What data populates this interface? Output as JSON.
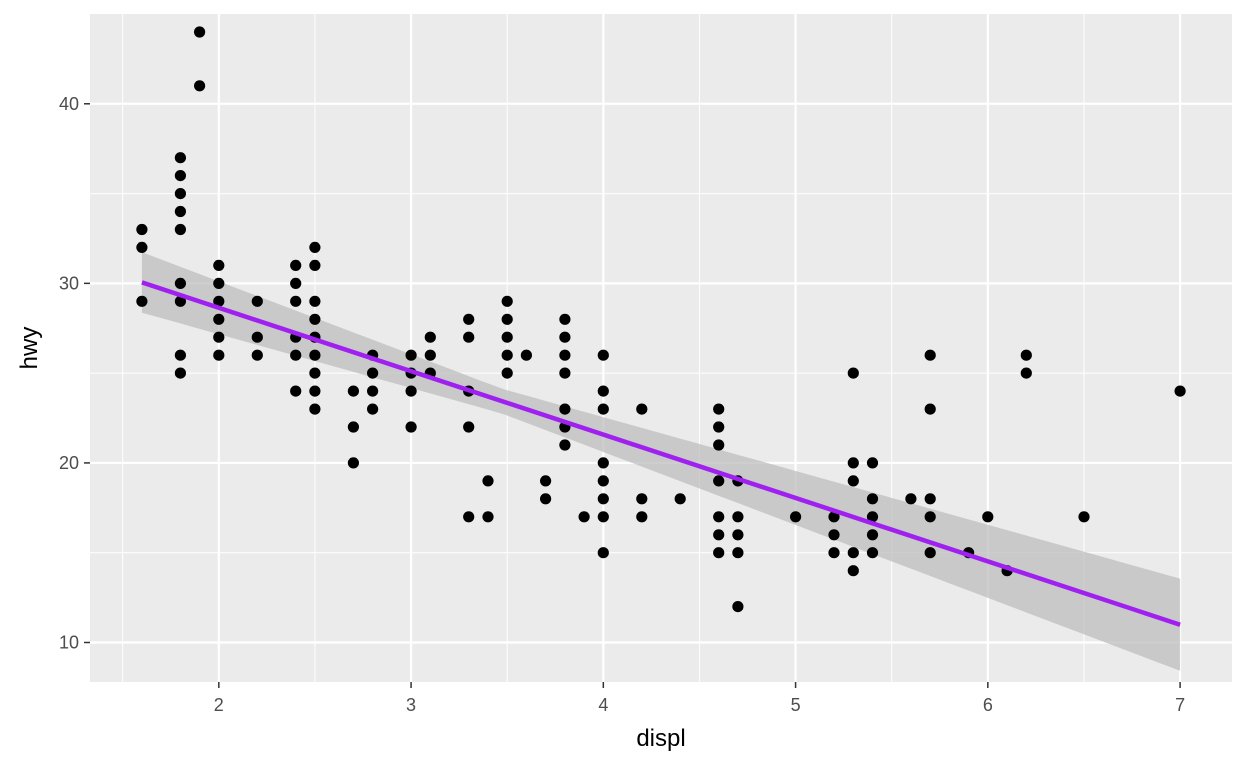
{
  "chart_data": {
    "type": "scatter",
    "title": "",
    "xlabel": "displ",
    "ylabel": "hwy",
    "xlim": [
      1.33,
      7.27
    ],
    "ylim": [
      7.8,
      45.0
    ],
    "x_ticks": [
      2,
      3,
      4,
      5,
      6,
      7
    ],
    "x_tick_labels": [
      "2",
      "3",
      "4",
      "5",
      "6",
      "7"
    ],
    "y_ticks": [
      10,
      20,
      30,
      40
    ],
    "y_tick_labels": [
      "10",
      "20",
      "30",
      "40"
    ],
    "grid": true,
    "legend": "none",
    "points": [
      [
        1.6,
        33
      ],
      [
        1.6,
        32
      ],
      [
        1.6,
        29
      ],
      [
        1.8,
        37
      ],
      [
        1.8,
        36
      ],
      [
        1.8,
        35
      ],
      [
        1.8,
        34
      ],
      [
        1.8,
        33
      ],
      [
        1.8,
        30
      ],
      [
        1.8,
        29
      ],
      [
        1.8,
        26
      ],
      [
        1.8,
        25
      ],
      [
        1.9,
        44
      ],
      [
        1.9,
        41
      ],
      [
        2.0,
        31
      ],
      [
        2.0,
        30
      ],
      [
        2.0,
        29
      ],
      [
        2.0,
        28
      ],
      [
        2.0,
        27
      ],
      [
        2.0,
        26
      ],
      [
        2.2,
        29
      ],
      [
        2.2,
        27
      ],
      [
        2.2,
        26
      ],
      [
        2.4,
        31
      ],
      [
        2.4,
        30
      ],
      [
        2.4,
        29
      ],
      [
        2.4,
        27
      ],
      [
        2.4,
        26
      ],
      [
        2.4,
        24
      ],
      [
        2.5,
        32
      ],
      [
        2.5,
        31
      ],
      [
        2.5,
        29
      ],
      [
        2.5,
        28
      ],
      [
        2.5,
        27
      ],
      [
        2.5,
        26
      ],
      [
        2.5,
        25
      ],
      [
        2.5,
        24
      ],
      [
        2.5,
        23
      ],
      [
        2.7,
        24
      ],
      [
        2.7,
        22
      ],
      [
        2.7,
        20
      ],
      [
        2.8,
        26
      ],
      [
        2.8,
        25
      ],
      [
        2.8,
        24
      ],
      [
        2.8,
        23
      ],
      [
        3.0,
        26
      ],
      [
        3.0,
        25
      ],
      [
        3.0,
        24
      ],
      [
        3.0,
        22
      ],
      [
        3.1,
        27
      ],
      [
        3.1,
        26
      ],
      [
        3.1,
        25
      ],
      [
        3.3,
        28
      ],
      [
        3.3,
        27
      ],
      [
        3.3,
        24
      ],
      [
        3.3,
        22
      ],
      [
        3.3,
        17
      ],
      [
        3.4,
        19
      ],
      [
        3.4,
        17
      ],
      [
        3.5,
        29
      ],
      [
        3.5,
        28
      ],
      [
        3.5,
        27
      ],
      [
        3.5,
        26
      ],
      [
        3.5,
        25
      ],
      [
        3.6,
        26
      ],
      [
        3.7,
        19
      ],
      [
        3.7,
        18
      ],
      [
        3.8,
        28
      ],
      [
        3.8,
        27
      ],
      [
        3.8,
        26
      ],
      [
        3.8,
        25
      ],
      [
        3.8,
        23
      ],
      [
        3.8,
        22
      ],
      [
        3.8,
        21
      ],
      [
        3.9,
        17
      ],
      [
        4.0,
        26
      ],
      [
        4.0,
        24
      ],
      [
        4.0,
        23
      ],
      [
        4.0,
        20
      ],
      [
        4.0,
        19
      ],
      [
        4.0,
        18
      ],
      [
        4.0,
        17
      ],
      [
        4.0,
        15
      ],
      [
        4.2,
        23
      ],
      [
        4.2,
        18
      ],
      [
        4.2,
        17
      ],
      [
        4.4,
        18
      ],
      [
        4.6,
        23
      ],
      [
        4.6,
        22
      ],
      [
        4.6,
        21
      ],
      [
        4.6,
        19
      ],
      [
        4.6,
        17
      ],
      [
        4.6,
        16
      ],
      [
        4.6,
        15
      ],
      [
        4.7,
        19
      ],
      [
        4.7,
        17
      ],
      [
        4.7,
        16
      ],
      [
        4.7,
        15
      ],
      [
        4.7,
        12
      ],
      [
        5.0,
        17
      ],
      [
        5.2,
        17
      ],
      [
        5.2,
        16
      ],
      [
        5.2,
        15
      ],
      [
        5.3,
        25
      ],
      [
        5.3,
        20
      ],
      [
        5.3,
        19
      ],
      [
        5.3,
        15
      ],
      [
        5.3,
        14
      ],
      [
        5.4,
        20
      ],
      [
        5.4,
        18
      ],
      [
        5.4,
        17
      ],
      [
        5.4,
        16
      ],
      [
        5.4,
        15
      ],
      [
        5.6,
        18
      ],
      [
        5.7,
        26
      ],
      [
        5.7,
        23
      ],
      [
        5.7,
        18
      ],
      [
        5.7,
        17
      ],
      [
        5.7,
        15
      ],
      [
        5.9,
        15
      ],
      [
        6.0,
        17
      ],
      [
        6.1,
        14
      ],
      [
        6.2,
        26
      ],
      [
        6.2,
        25
      ],
      [
        6.5,
        17
      ],
      [
        7.0,
        24
      ]
    ],
    "smooth": {
      "method": "lm",
      "intercept": 35.7,
      "slope": -3.53,
      "se_min": 0.35,
      "se_scale": 0.27,
      "x_center": 3.47,
      "x_range": [
        1.6,
        7.0
      ],
      "line_color": "#a020f0",
      "band_color": "#bebebe"
    },
    "point_color": "#000000",
    "panel_background": "#ebebeb",
    "grid_color": "#ffffff"
  }
}
